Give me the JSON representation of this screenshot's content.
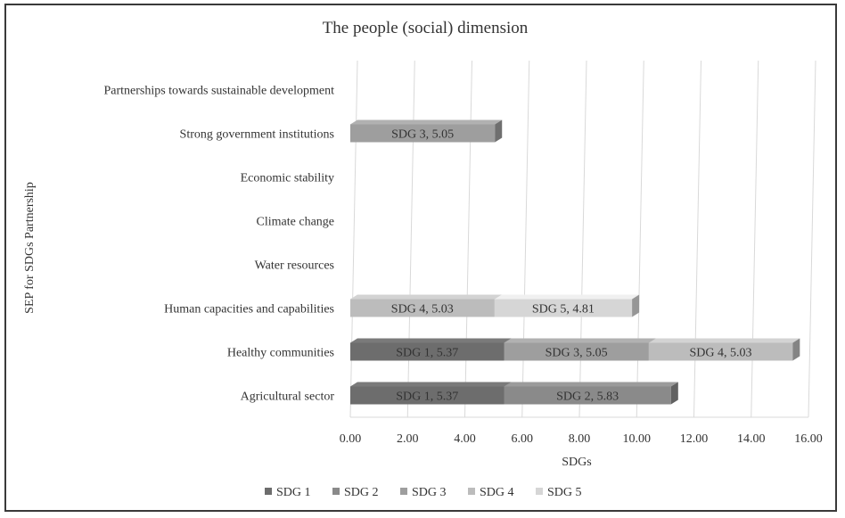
{
  "chart_data": {
    "type": "bar",
    "orientation": "horizontal",
    "stacked": true,
    "title": "The people (social) dimension",
    "xlabel": "SDGs",
    "ylabel": "SEP for SDGs Partnership",
    "xlim": [
      0,
      16
    ],
    "x_ticks": [
      "0.00",
      "2.00",
      "4.00",
      "6.00",
      "8.00",
      "10.00",
      "12.00",
      "14.00",
      "16.00"
    ],
    "grid": "vertical",
    "legend_position": "bottom",
    "categories": [
      "Partnerships towards sustainable development",
      "Strong government institutions",
      "Economic stability",
      "Climate change",
      "Water resources",
      "Human capacities and capabilities",
      "Healthy communities",
      "Agricultural sector"
    ],
    "series": [
      {
        "name": "SDG 1",
        "color": "#6d6d6d",
        "values": [
          0,
          0,
          0,
          0,
          0,
          0,
          5.37,
          5.37
        ]
      },
      {
        "name": "SDG 2",
        "color": "#8a8a8a",
        "values": [
          0,
          0,
          0,
          0,
          0,
          0,
          0,
          5.83
        ]
      },
      {
        "name": "SDG 3",
        "color": "#9e9e9e",
        "values": [
          0,
          5.05,
          0,
          0,
          0,
          0,
          5.05,
          0
        ]
      },
      {
        "name": "SDG 4",
        "color": "#bcbcbc",
        "values": [
          0,
          0,
          0,
          0,
          0,
          5.03,
          5.03,
          0
        ]
      },
      {
        "name": "SDG 5",
        "color": "#d6d6d6",
        "values": [
          0,
          0,
          0,
          0,
          0,
          4.81,
          0,
          0
        ]
      }
    ],
    "data_labels": [
      [
        "",
        "",
        "",
        "",
        "",
        "",
        "SDG 1, 5.37",
        "SDG 1, 5.37"
      ],
      [
        "",
        "",
        "",
        "",
        "",
        "",
        "",
        "SDG 2, 5.83"
      ],
      [
        "",
        "SDG 3, 5.05",
        "",
        "",
        "",
        "",
        "SDG 3, 5.05",
        ""
      ],
      [
        "",
        "",
        "",
        "",
        "",
        "SDG 4, 5.03",
        "SDG 4, 5.03",
        ""
      ],
      [
        "",
        "",
        "",
        "",
        "",
        "SDG 5, 4.81",
        "",
        ""
      ]
    ]
  }
}
